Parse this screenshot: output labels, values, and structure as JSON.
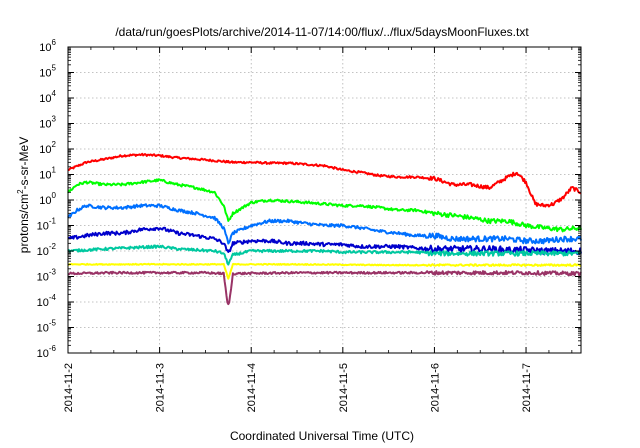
{
  "chart_data": {
    "type": "line",
    "title": "/data/run/goesPlots/archive/2014-11-07/14:00/flux/../flux/5daysMoonFluxes.txt",
    "xlabel": "Coordinated Universal Time (UTC)",
    "ylabel": "protons/cm²-s-sr-MeV",
    "ylabel_parts": {
      "pre": "protons/cm",
      "sup": "2",
      "post": "-s-sr-MeV"
    },
    "xlim": [
      "2014-11-02",
      "2014-11-07 14:00"
    ],
    "xlim_days": [
      0,
      5.6
    ],
    "ylim": [
      1e-06,
      1000000.0
    ],
    "yscale": "log",
    "grid": true,
    "legend": "none",
    "x_ticks": [
      "2014-11-2",
      "2014-11-3",
      "2014-11-4",
      "2014-11-5",
      "2014-11-6",
      "2014-11-7"
    ],
    "y_ticks": [
      {
        "base": "10",
        "exp": "6"
      },
      {
        "base": "10",
        "exp": "5"
      },
      {
        "base": "10",
        "exp": "4"
      },
      {
        "base": "10",
        "exp": "3"
      },
      {
        "base": "10",
        "exp": "2"
      },
      {
        "base": "10",
        "exp": "1"
      },
      {
        "base": "10",
        "exp": "0"
      },
      {
        "base": "10",
        "exp": "-1"
      },
      {
        "base": "10",
        "exp": "-2"
      },
      {
        "base": "10",
        "exp": "-3"
      },
      {
        "base": "10",
        "exp": "-4"
      },
      {
        "base": "10",
        "exp": "-5"
      },
      {
        "base": "10",
        "exp": "-6"
      }
    ],
    "x_unit": "days since 2014-11-02 00:00 UTC",
    "series": [
      {
        "color": "#ff0000",
        "noise": 0.04,
        "x": [
          0,
          0.2,
          0.4,
          0.6,
          0.8,
          1.0,
          1.2,
          1.4,
          1.6,
          1.8,
          2.0,
          2.2,
          2.4,
          2.6,
          2.8,
          3.0,
          3.2,
          3.4,
          3.6,
          3.8,
          4.0,
          4.2,
          4.4,
          4.6,
          4.8,
          4.9,
          5.0,
          5.1,
          5.2,
          5.3,
          5.4,
          5.5,
          5.6
        ],
        "y": [
          15,
          30,
          40,
          55,
          60,
          55,
          45,
          40,
          35,
          30,
          30,
          28,
          28,
          25,
          22,
          15,
          12,
          9,
          8,
          8,
          7,
          4,
          4,
          3,
          8,
          12,
          5,
          0.7,
          0.6,
          0.7,
          1.2,
          3,
          2
        ]
      },
      {
        "color": "#00ff00",
        "noise": 0.05,
        "x": [
          0,
          0.1,
          0.2,
          0.4,
          0.6,
          0.8,
          1.0,
          1.2,
          1.4,
          1.6,
          1.7,
          1.75,
          1.8,
          2.0,
          2.2,
          2.4,
          2.6,
          2.8,
          3.0,
          3.2,
          3.4,
          3.6,
          3.8,
          4.0,
          4.2,
          4.4,
          4.6,
          4.8,
          5.0,
          5.2,
          5.4,
          5.6
        ],
        "y": [
          2,
          4,
          5,
          4,
          4,
          5,
          6,
          4,
          3,
          2,
          0.6,
          0.15,
          0.3,
          0.8,
          1,
          0.9,
          0.8,
          0.7,
          0.6,
          0.6,
          0.5,
          0.4,
          0.4,
          0.3,
          0.25,
          0.2,
          0.15,
          0.15,
          0.1,
          0.08,
          0.07,
          0.08
        ]
      },
      {
        "color": "#0070ff",
        "noise": 0.06,
        "x": [
          0,
          0.1,
          0.2,
          0.4,
          0.6,
          0.8,
          1.0,
          1.2,
          1.4,
          1.6,
          1.7,
          1.75,
          1.8,
          2.0,
          2.2,
          2.4,
          2.6,
          2.8,
          3.0,
          3.2,
          3.4,
          3.6,
          3.8,
          4.0,
          4.2,
          4.4,
          4.6,
          4.8,
          5.0,
          5.2,
          5.4,
          5.6
        ],
        "y": [
          0.2,
          0.4,
          0.6,
          0.5,
          0.5,
          0.6,
          0.6,
          0.4,
          0.3,
          0.2,
          0.08,
          0.02,
          0.05,
          0.1,
          0.15,
          0.15,
          0.12,
          0.1,
          0.1,
          0.08,
          0.06,
          0.05,
          0.04,
          0.04,
          0.03,
          0.03,
          0.03,
          0.03,
          0.025,
          0.025,
          0.03,
          0.03
        ]
      },
      {
        "color": "#0000cc",
        "noise": 0.07,
        "x": [
          0,
          0.2,
          0.4,
          0.6,
          0.8,
          1.0,
          1.2,
          1.4,
          1.6,
          1.7,
          1.75,
          1.8,
          2.0,
          2.2,
          2.4,
          2.6,
          2.8,
          3.0,
          3.2,
          3.4,
          3.6,
          3.8,
          4.0,
          4.2,
          4.4,
          4.6,
          4.8,
          5.0,
          5.2,
          5.4,
          5.6
        ],
        "y": [
          0.03,
          0.04,
          0.05,
          0.05,
          0.07,
          0.08,
          0.05,
          0.04,
          0.03,
          0.02,
          0.008,
          0.02,
          0.025,
          0.025,
          0.02,
          0.02,
          0.018,
          0.018,
          0.015,
          0.015,
          0.015,
          0.013,
          0.012,
          0.012,
          0.012,
          0.012,
          0.011,
          0.011,
          0.01,
          0.01,
          0.01
        ]
      },
      {
        "color": "#00c8a0",
        "noise": 0.05,
        "x": [
          0,
          0.4,
          0.8,
          1.0,
          1.2,
          1.6,
          1.7,
          1.75,
          1.8,
          2.0,
          2.4,
          2.8,
          3.0,
          3.2,
          3.4,
          3.6,
          3.8,
          4.0,
          4.2,
          4.4,
          4.6,
          4.8,
          5.0,
          5.2,
          5.4,
          5.6
        ],
        "y": [
          0.01,
          0.012,
          0.014,
          0.015,
          0.012,
          0.01,
          0.008,
          0.003,
          0.007,
          0.01,
          0.01,
          0.01,
          0.009,
          0.009,
          0.009,
          0.009,
          0.009,
          0.008,
          0.008,
          0.008,
          0.008,
          0.008,
          0.008,
          0.008,
          0.008,
          0.008
        ]
      },
      {
        "color": "#ffff00",
        "noise": 0.02,
        "x": [
          0,
          1.0,
          1.7,
          1.75,
          1.8,
          2.5,
          3.5,
          4.5,
          5.6
        ],
        "y": [
          0.003,
          0.003,
          0.003,
          0.0008,
          0.003,
          0.003,
          0.0028,
          0.0028,
          0.0028
        ]
      },
      {
        "color": "#993366",
        "noise": 0.04,
        "x": [
          0,
          0.5,
          1.0,
          1.5,
          1.7,
          1.74,
          1.76,
          1.8,
          2.5,
          3.0,
          3.5,
          4.0,
          4.5,
          5.0,
          5.6
        ],
        "y": [
          0.0013,
          0.0014,
          0.0014,
          0.0014,
          0.0013,
          9e-05,
          9e-05,
          0.0013,
          0.0014,
          0.0014,
          0.0014,
          0.0014,
          0.0014,
          0.0014,
          0.0013
        ]
      }
    ]
  }
}
